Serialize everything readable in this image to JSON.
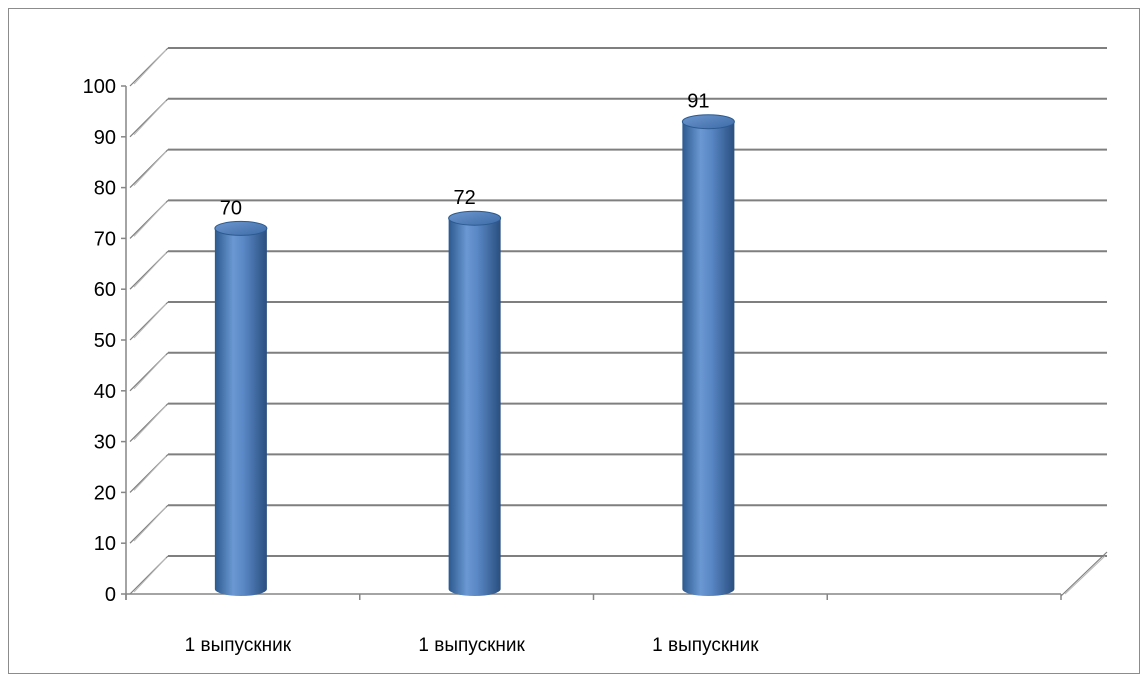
{
  "chart_data": {
    "type": "bar",
    "style": "3d-cylinder",
    "categories": [
      "1 выпускник",
      "1 выпускник",
      "1 выпускник"
    ],
    "values": [
      70,
      72,
      91
    ],
    "data_labels": [
      "70",
      "72",
      "91"
    ],
    "y_ticks": [
      "0",
      "10",
      "20",
      "30",
      "40",
      "50",
      "60",
      "70",
      "80",
      "90",
      "100"
    ],
    "ylim": [
      0,
      100
    ],
    "grid": true,
    "legend": "none",
    "colors": {
      "bar": "#4f81bd",
      "bar_dark": "#2c5a8f",
      "bar_light": "#8fb3e0",
      "gridline": "#7f7f7f",
      "axis": "#868686"
    }
  }
}
